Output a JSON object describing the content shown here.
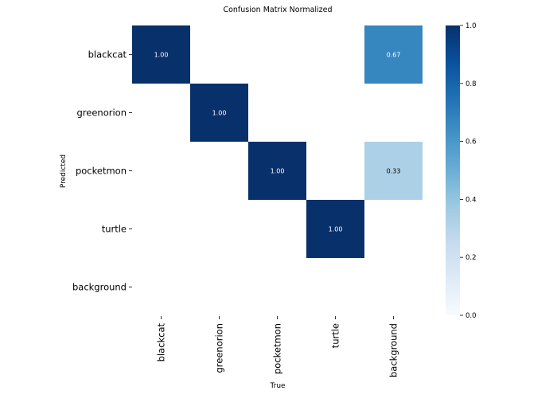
{
  "chart_data": {
    "type": "heatmap",
    "title": "Confusion Matrix Normalized",
    "xlabel": "True",
    "ylabel": "Predicted",
    "x_categories": [
      "blackcat",
      "greenorion",
      "pocketmon",
      "turtle",
      "background"
    ],
    "y_categories": [
      "blackcat",
      "greenorion",
      "pocketmon",
      "turtle",
      "background"
    ],
    "values": [
      [
        1.0,
        null,
        null,
        null,
        0.67
      ],
      [
        null,
        1.0,
        null,
        null,
        null
      ],
      [
        null,
        null,
        1.0,
        null,
        0.33
      ],
      [
        null,
        null,
        null,
        1.0,
        null
      ],
      [
        null,
        null,
        null,
        null,
        null
      ]
    ],
    "value_labels": [
      [
        "1.00",
        "",
        "",
        "",
        "0.67"
      ],
      [
        "",
        "1.00",
        "",
        "",
        ""
      ],
      [
        "",
        "",
        "1.00",
        "",
        "0.33"
      ],
      [
        "",
        "",
        "",
        "1.00",
        ""
      ],
      [
        "",
        "",
        "",
        "",
        ""
      ]
    ],
    "colormap": "Blues",
    "colorbar": {
      "range": [
        0.0,
        1.0
      ],
      "ticks": [
        0.0,
        0.2,
        0.4,
        0.6,
        0.8,
        1.0
      ],
      "tick_labels": [
        "0.0",
        "0.2",
        "0.4",
        "0.6",
        "0.8",
        "1.0"
      ]
    },
    "grid": false
  }
}
